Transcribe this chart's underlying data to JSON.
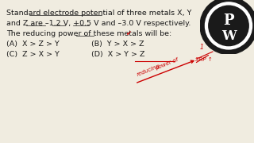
{
  "bg_color": "#f0ece0",
  "text_color": "#1a1a1a",
  "line1": "Standard electrode potential of three metals X, Y",
  "line2": "and Z are –1.2 V, +0.5 V and –3.0 V respectively.",
  "line3": "The reducing power of these metals will be:",
  "optA": "(A)  X > Z > Y",
  "optB": "(B)  Y > X > Z",
  "optC": "(C)  Z > X > Y",
  "optD": "(D)  X > Y > Z",
  "font_size": 6.8,
  "red_color": "#cc0000",
  "logo_dark": "#1a1a1a",
  "logo_white": "#ffffff"
}
